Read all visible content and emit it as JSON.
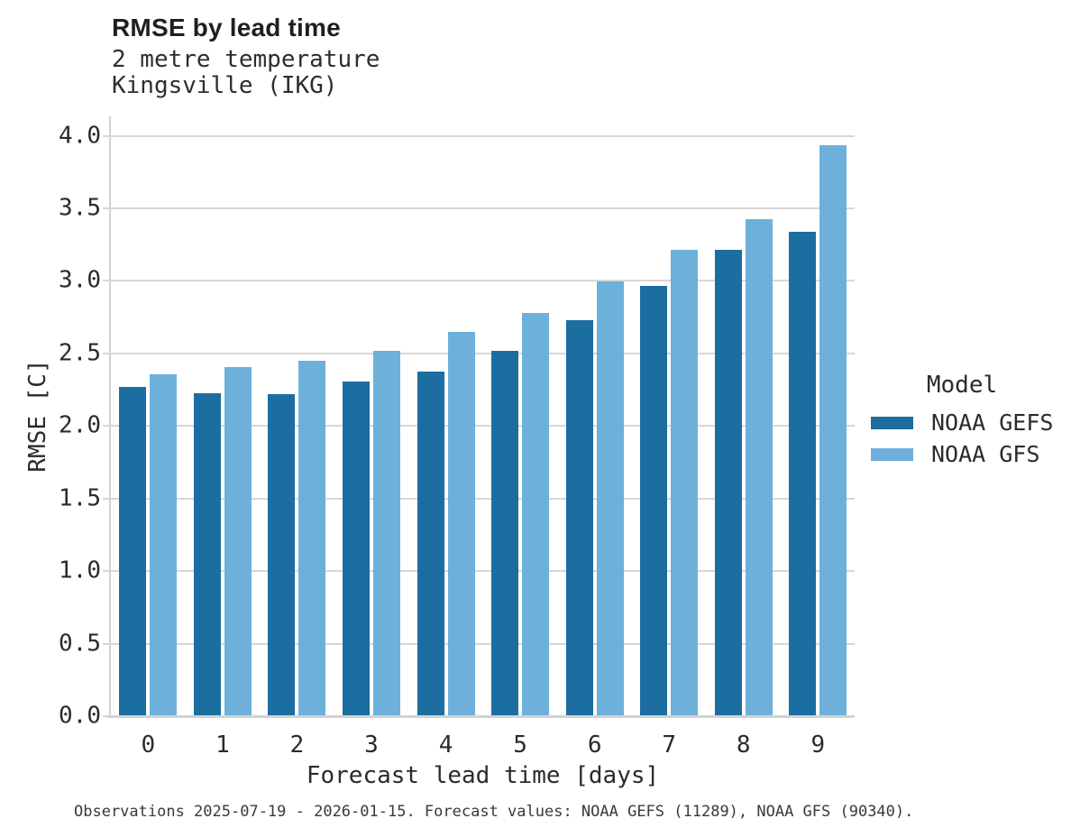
{
  "header": {
    "title": "RMSE by lead time",
    "subtitle_line1": "2 metre temperature",
    "subtitle_line2": "Kingsville (IKG)"
  },
  "chart_data": {
    "type": "bar",
    "title": "RMSE by lead time",
    "subtitle": [
      "2 metre temperature",
      "Kingsville (IKG)"
    ],
    "xlabel": "Forecast lead time [days]",
    "ylabel": "RMSE [C]",
    "categories": [
      "0",
      "1",
      "2",
      "3",
      "4",
      "5",
      "6",
      "7",
      "8",
      "9"
    ],
    "series": [
      {
        "name": "NOAA GEFS",
        "color": "#1c6da0",
        "values": [
          2.26,
          2.22,
          2.21,
          2.3,
          2.37,
          2.51,
          2.72,
          2.96,
          3.21,
          3.33
        ]
      },
      {
        "name": "NOAA GFS",
        "color": "#6db1da",
        "values": [
          2.35,
          2.4,
          2.44,
          2.51,
          2.64,
          2.77,
          2.99,
          3.21,
          3.42,
          3.93
        ]
      }
    ],
    "ylim": [
      0.0,
      4.0
    ],
    "ytick_step": 0.5,
    "y_tick_labels": [
      "0.0",
      "0.5",
      "1.0",
      "1.5",
      "2.0",
      "2.5",
      "3.0",
      "3.5",
      "4.0"
    ],
    "grid": true,
    "legend_position": "right",
    "legend_title": "Model"
  },
  "legend": {
    "title": "Model",
    "items": [
      {
        "label": "NOAA GEFS",
        "color": "#1c6da0"
      },
      {
        "label": "NOAA GFS",
        "color": "#6db1da"
      }
    ]
  },
  "footnote": "Observations 2025-07-19 - 2026-01-15. Forecast values: NOAA GEFS (11289), NOAA GFS (90340)."
}
